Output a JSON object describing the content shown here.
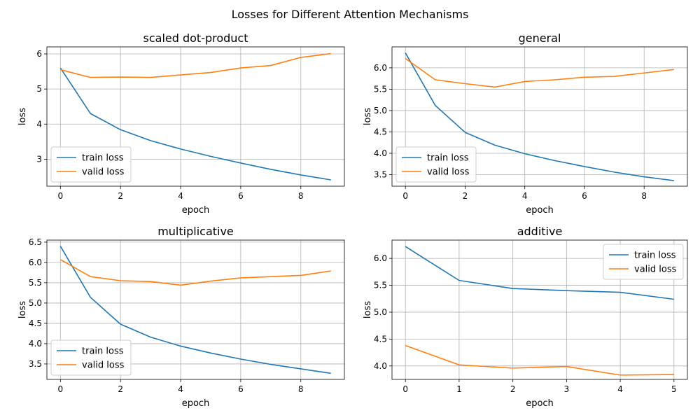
{
  "figure": {
    "title": "Losses for Different Attention Mechanisms"
  },
  "chart_data": [
    {
      "type": "line",
      "title": "scaled dot-product",
      "xlabel": "epoch",
      "ylabel": "loss",
      "x": [
        0,
        1,
        2,
        3,
        4,
        5,
        6,
        7,
        8,
        9
      ],
      "xlim": [
        -0.45,
        9.45
      ],
      "ylim": [
        2.23,
        6.2
      ],
      "xticks": [
        0,
        2,
        4,
        6,
        8
      ],
      "yticks": [
        3,
        4,
        5,
        6
      ],
      "grid": true,
      "legend": "lower-left",
      "series": [
        {
          "name": "train loss",
          "color": "#1f77b4",
          "values": [
            5.6,
            4.3,
            3.84,
            3.53,
            3.29,
            3.08,
            2.89,
            2.71,
            2.55,
            2.41
          ]
        },
        {
          "name": "valid loss",
          "color": "#ff7f0e",
          "values": [
            5.55,
            5.33,
            5.34,
            5.33,
            5.4,
            5.47,
            5.6,
            5.67,
            5.9,
            6.01
          ]
        }
      ]
    },
    {
      "type": "line",
      "title": "general",
      "xlabel": "epoch",
      "ylabel": "loss",
      "x": [
        0,
        1,
        2,
        3,
        4,
        5,
        6,
        7,
        8,
        9
      ],
      "xlim": [
        -0.45,
        9.45
      ],
      "ylim": [
        3.23,
        6.49
      ],
      "xticks": [
        0,
        2,
        4,
        6,
        8
      ],
      "yticks": [
        3.5,
        4.0,
        4.5,
        5.0,
        5.5,
        6.0
      ],
      "grid": true,
      "legend": "lower-left",
      "series": [
        {
          "name": "train loss",
          "color": "#1f77b4",
          "values": [
            6.35,
            5.12,
            4.49,
            4.19,
            3.99,
            3.83,
            3.69,
            3.56,
            3.45,
            3.36
          ]
        },
        {
          "name": "valid loss",
          "color": "#ff7f0e",
          "values": [
            6.22,
            5.72,
            5.63,
            5.55,
            5.68,
            5.72,
            5.78,
            5.8,
            5.88,
            5.96
          ]
        }
      ]
    },
    {
      "type": "line",
      "title": "multiplicative",
      "xlabel": "epoch",
      "ylabel": "loss",
      "x": [
        0,
        1,
        2,
        3,
        4,
        5,
        6,
        7,
        8,
        9
      ],
      "xlim": [
        -0.45,
        9.45
      ],
      "ylim": [
        3.12,
        6.55
      ],
      "xticks": [
        0,
        2,
        4,
        6,
        8
      ],
      "yticks": [
        3.5,
        4.0,
        4.5,
        5.0,
        5.5,
        6.0,
        6.5
      ],
      "grid": true,
      "legend": "lower-left",
      "series": [
        {
          "name": "train loss",
          "color": "#1f77b4",
          "values": [
            6.4,
            5.14,
            4.48,
            4.16,
            3.94,
            3.77,
            3.62,
            3.49,
            3.38,
            3.27
          ]
        },
        {
          "name": "valid loss",
          "color": "#ff7f0e",
          "values": [
            6.07,
            5.65,
            5.55,
            5.53,
            5.44,
            5.54,
            5.62,
            5.65,
            5.68,
            5.79
          ]
        }
      ]
    },
    {
      "type": "line",
      "title": "additive",
      "xlabel": "epoch",
      "ylabel": "loss",
      "x": [
        0,
        1,
        2,
        3,
        4,
        5
      ],
      "xlim": [
        -0.25,
        5.25
      ],
      "ylim": [
        3.75,
        6.34
      ],
      "xticks": [
        0,
        1,
        2,
        3,
        4,
        5
      ],
      "yticks": [
        4.0,
        4.5,
        5.0,
        5.5,
        6.0
      ],
      "grid": true,
      "legend": "upper-right",
      "series": [
        {
          "name": "train loss",
          "color": "#1f77b4",
          "values": [
            6.22,
            5.59,
            5.44,
            5.4,
            5.37,
            5.24
          ]
        },
        {
          "name": "valid loss",
          "color": "#ff7f0e",
          "values": [
            4.38,
            4.02,
            3.96,
            3.99,
            3.83,
            3.84
          ]
        }
      ]
    }
  ]
}
